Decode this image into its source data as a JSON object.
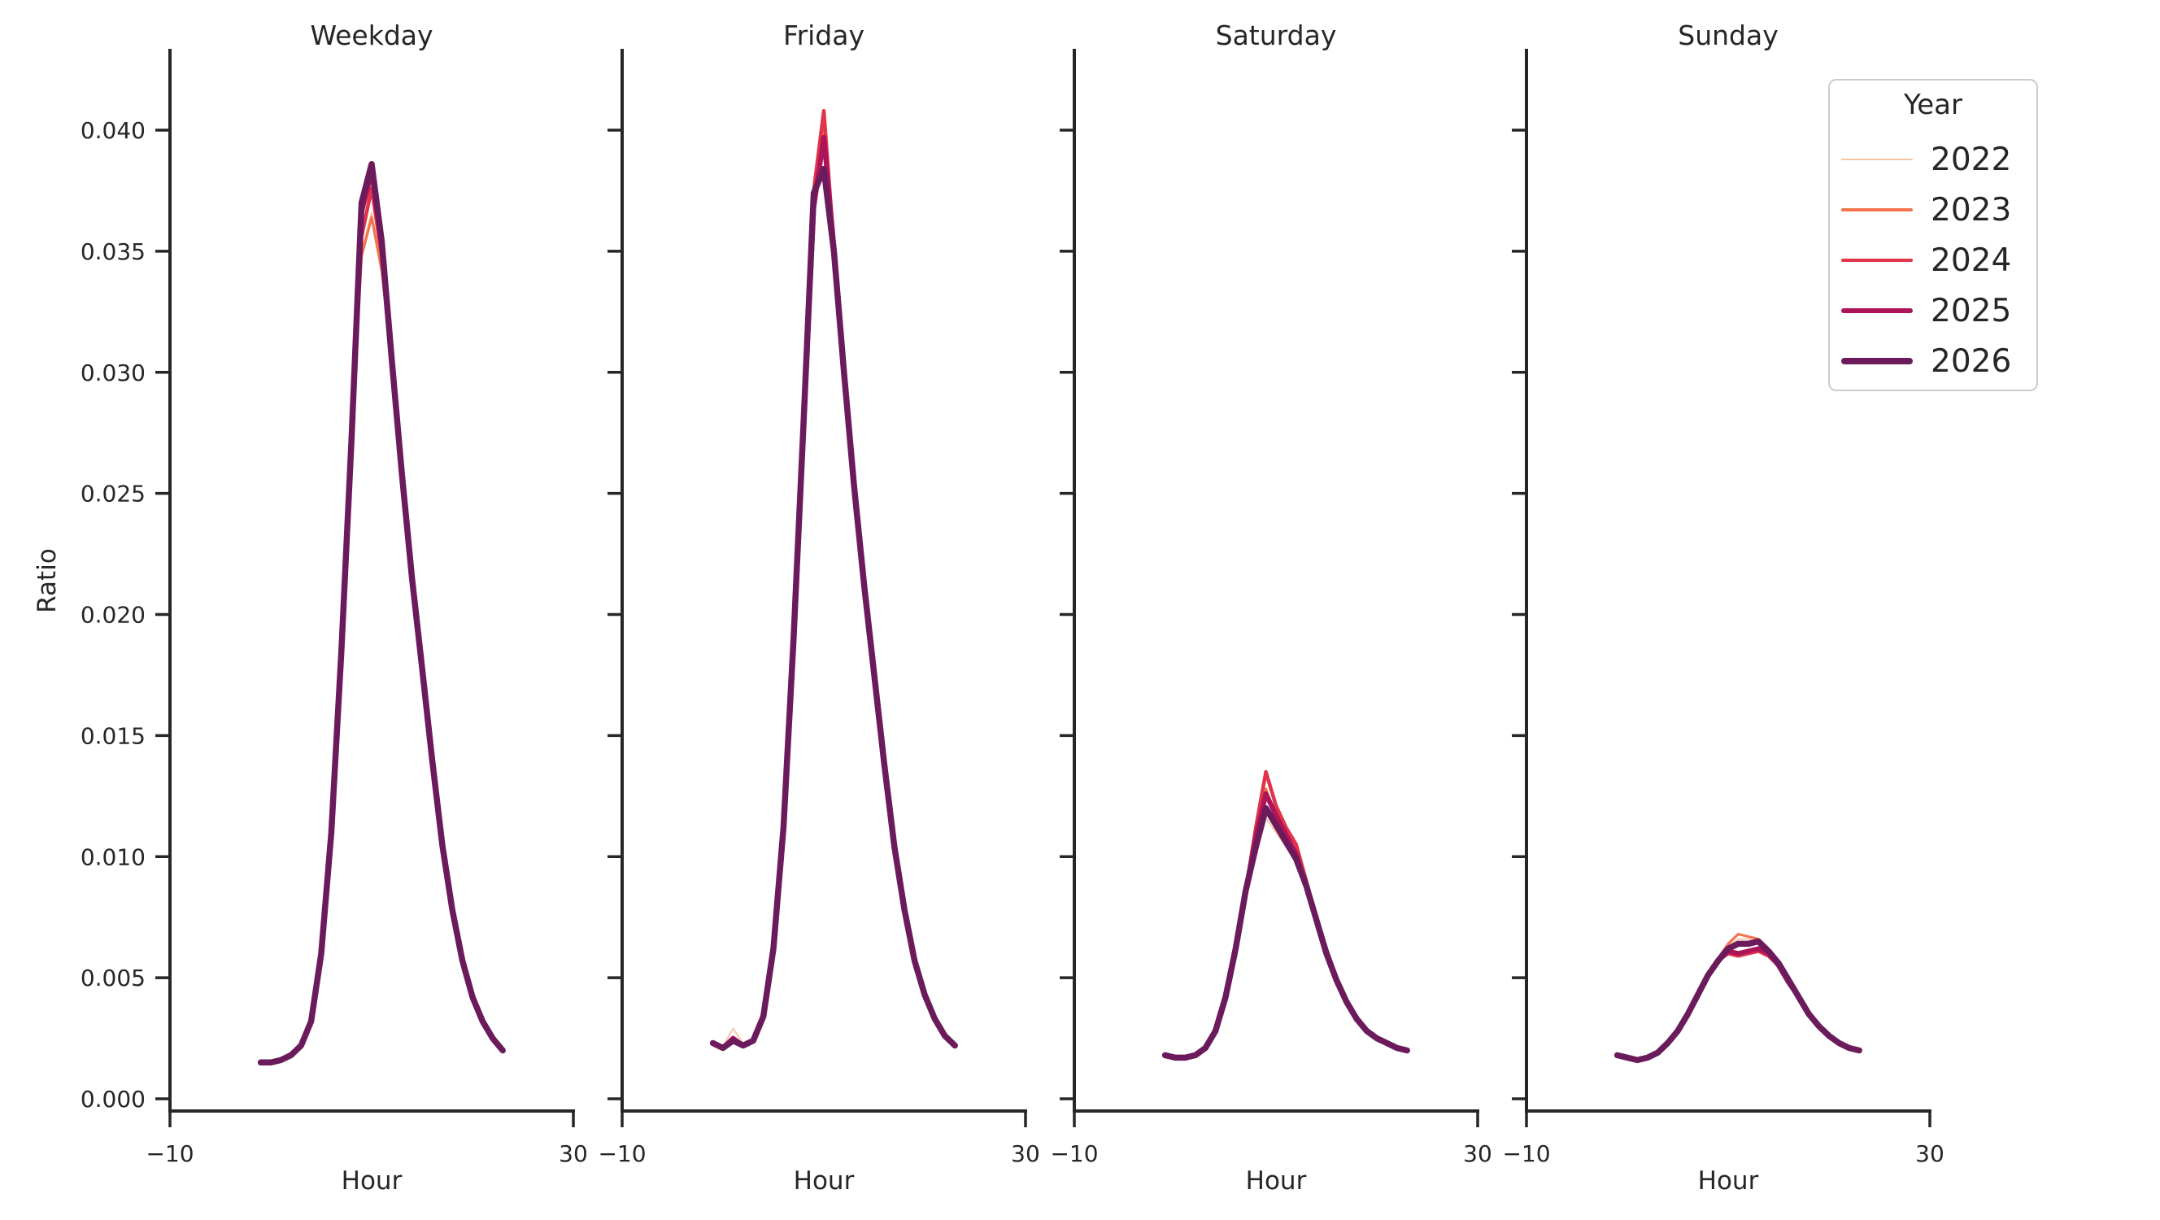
{
  "figure": {
    "background": "#ffffff",
    "text_color": "#262626"
  },
  "chart_data": {
    "type": "line",
    "facets": [
      {
        "title": "Weekday",
        "series": [
          {
            "year": "2022",
            "values": [
              0.0015,
              0.0015,
              0.0016,
              0.0018,
              0.0022,
              0.0032,
              0.006,
              0.011,
              0.0185,
              0.0272,
              0.035,
              0.0366,
              0.0344,
              0.0305,
              0.0258,
              0.0215,
              0.0178,
              0.014,
              0.0105,
              0.0078,
              0.0057,
              0.0042,
              0.0032,
              0.0025,
              0.002
            ]
          },
          {
            "year": "2023",
            "values": [
              0.0015,
              0.0015,
              0.0016,
              0.0018,
              0.0022,
              0.0032,
              0.006,
              0.011,
              0.0185,
              0.0272,
              0.0348,
              0.0364,
              0.0342,
              0.0305,
              0.0258,
              0.0215,
              0.0178,
              0.014,
              0.0105,
              0.0078,
              0.0057,
              0.0042,
              0.0032,
              0.0025,
              0.002
            ]
          },
          {
            "year": "2024",
            "values": [
              0.0015,
              0.0015,
              0.0016,
              0.0018,
              0.0022,
              0.0032,
              0.006,
              0.011,
              0.0185,
              0.0272,
              0.0356,
              0.0376,
              0.0348,
              0.0305,
              0.0258,
              0.0215,
              0.0178,
              0.014,
              0.0105,
              0.0078,
              0.0057,
              0.0042,
              0.0032,
              0.0025,
              0.002
            ]
          },
          {
            "year": "2025",
            "values": [
              0.0015,
              0.0015,
              0.0016,
              0.0018,
              0.0022,
              0.0032,
              0.006,
              0.011,
              0.0185,
              0.0272,
              0.0366,
              0.0383,
              0.0352,
              0.0305,
              0.0258,
              0.0215,
              0.0178,
              0.014,
              0.0105,
              0.0078,
              0.0057,
              0.0042,
              0.0032,
              0.0025,
              0.002
            ]
          },
          {
            "year": "2026",
            "values": [
              0.0015,
              0.0015,
              0.0016,
              0.0018,
              0.0022,
              0.0032,
              0.006,
              0.011,
              0.0185,
              0.0272,
              0.037,
              0.0386,
              0.0354,
              0.0305,
              0.0258,
              0.0215,
              0.0178,
              0.014,
              0.0105,
              0.0078,
              0.0057,
              0.0042,
              0.0032,
              0.0025,
              0.002
            ]
          }
        ]
      },
      {
        "title": "Friday",
        "series": [
          {
            "year": "2022",
            "values": [
              0.0024,
              0.0022,
              0.0029,
              0.0023,
              0.0025,
              0.0034,
              0.0062,
              0.0112,
              0.019,
              0.028,
              0.0368,
              0.0399,
              0.0352,
              0.03,
              0.0253,
              0.0212,
              0.0175,
              0.0138,
              0.0104,
              0.0078,
              0.0057,
              0.0043,
              0.0033,
              0.0026,
              0.0022
            ]
          },
          {
            "year": "2023",
            "values": [
              0.0023,
              0.0021,
              0.0025,
              0.0022,
              0.0024,
              0.0034,
              0.0062,
              0.0112,
              0.019,
              0.028,
              0.037,
              0.0402,
              0.0352,
              0.03,
              0.0253,
              0.0212,
              0.0175,
              0.0138,
              0.0104,
              0.0078,
              0.0057,
              0.0043,
              0.0033,
              0.0026,
              0.0022
            ]
          },
          {
            "year": "2024",
            "values": [
              0.0023,
              0.0021,
              0.0025,
              0.0022,
              0.0024,
              0.0034,
              0.0062,
              0.0112,
              0.019,
              0.028,
              0.0375,
              0.0408,
              0.0352,
              0.03,
              0.0253,
              0.0212,
              0.0175,
              0.0138,
              0.0104,
              0.0078,
              0.0057,
              0.0043,
              0.0033,
              0.0026,
              0.0022
            ]
          },
          {
            "year": "2025",
            "values": [
              0.0023,
              0.0021,
              0.0025,
              0.0022,
              0.0024,
              0.0034,
              0.0062,
              0.0112,
              0.019,
              0.028,
              0.0368,
              0.0397,
              0.0352,
              0.03,
              0.0253,
              0.0212,
              0.0175,
              0.0138,
              0.0104,
              0.0078,
              0.0057,
              0.0043,
              0.0033,
              0.0026,
              0.0022
            ]
          },
          {
            "year": "2026",
            "values": [
              0.0023,
              0.0021,
              0.0024,
              0.0022,
              0.0024,
              0.0034,
              0.0062,
              0.0112,
              0.019,
              0.028,
              0.0374,
              0.0384,
              0.035,
              0.03,
              0.0253,
              0.0212,
              0.0175,
              0.0138,
              0.0104,
              0.0078,
              0.0057,
              0.0043,
              0.0033,
              0.0026,
              0.0022
            ]
          }
        ]
      },
      {
        "title": "Saturday",
        "series": [
          {
            "year": "2022",
            "values": [
              0.0018,
              0.0017,
              0.0017,
              0.0018,
              0.0021,
              0.0028,
              0.0042,
              0.0062,
              0.0086,
              0.01,
              0.0116,
              0.011,
              0.0104,
              0.0098,
              0.0088,
              0.0074,
              0.0061,
              0.0049,
              0.004,
              0.0033,
              0.0028,
              0.0025,
              0.0023,
              0.0021,
              0.002
            ]
          },
          {
            "year": "2023",
            "values": [
              0.0018,
              0.0017,
              0.0017,
              0.0018,
              0.0021,
              0.0028,
              0.0042,
              0.0062,
              0.0086,
              0.0108,
              0.0128,
              0.0115,
              0.0108,
              0.0102,
              0.0088,
              0.0074,
              0.0061,
              0.0049,
              0.004,
              0.0033,
              0.0028,
              0.0025,
              0.0023,
              0.0021,
              0.002
            ]
          },
          {
            "year": "2024",
            "values": [
              0.0018,
              0.0017,
              0.0017,
              0.0018,
              0.0021,
              0.0028,
              0.0042,
              0.0062,
              0.0086,
              0.0112,
              0.0135,
              0.0121,
              0.0112,
              0.0105,
              0.009,
              0.0074,
              0.0061,
              0.0049,
              0.004,
              0.0033,
              0.0028,
              0.0025,
              0.0023,
              0.0021,
              0.002
            ]
          },
          {
            "year": "2025",
            "values": [
              0.0018,
              0.0017,
              0.0017,
              0.0018,
              0.0021,
              0.0028,
              0.0042,
              0.0062,
              0.0086,
              0.0108,
              0.0126,
              0.0117,
              0.0109,
              0.0101,
              0.0088,
              0.0074,
              0.0061,
              0.0049,
              0.004,
              0.0033,
              0.0028,
              0.0025,
              0.0023,
              0.0021,
              0.002
            ]
          },
          {
            "year": "2026",
            "values": [
              0.0018,
              0.0017,
              0.0017,
              0.0018,
              0.0021,
              0.0028,
              0.0042,
              0.0062,
              0.0086,
              0.0104,
              0.012,
              0.0113,
              0.0106,
              0.0099,
              0.0088,
              0.0074,
              0.006,
              0.0049,
              0.004,
              0.0033,
              0.0028,
              0.0025,
              0.0023,
              0.0021,
              0.002
            ]
          }
        ]
      },
      {
        "title": "Sunday",
        "series": [
          {
            "year": "2022",
            "values": [
              0.0018,
              0.0017,
              0.0016,
              0.0017,
              0.0019,
              0.0023,
              0.0028,
              0.0035,
              0.0043,
              0.0051,
              0.0057,
              0.0063,
              0.0066,
              0.0066,
              0.0065,
              0.0061,
              0.0056,
              0.0049,
              0.0042,
              0.0035,
              0.003,
              0.0026,
              0.0023,
              0.0021,
              0.002
            ]
          },
          {
            "year": "2023",
            "values": [
              0.0018,
              0.0017,
              0.0016,
              0.0017,
              0.0019,
              0.0023,
              0.0028,
              0.0035,
              0.0043,
              0.0051,
              0.0058,
              0.0064,
              0.0068,
              0.0067,
              0.0066,
              0.0062,
              0.0056,
              0.0049,
              0.0042,
              0.0035,
              0.003,
              0.0026,
              0.0023,
              0.0021,
              0.002
            ]
          },
          {
            "year": "2024",
            "values": [
              0.0018,
              0.0017,
              0.0016,
              0.0017,
              0.0019,
              0.0023,
              0.0028,
              0.0035,
              0.0043,
              0.0051,
              0.0057,
              0.006,
              0.0059,
              0.006,
              0.0061,
              0.0059,
              0.0055,
              0.0048,
              0.0042,
              0.0035,
              0.003,
              0.0026,
              0.0023,
              0.0021,
              0.002
            ]
          },
          {
            "year": "2025",
            "values": [
              0.0018,
              0.0017,
              0.0016,
              0.0017,
              0.0019,
              0.0023,
              0.0028,
              0.0035,
              0.0043,
              0.0051,
              0.0057,
              0.0061,
              0.006,
              0.0061,
              0.0062,
              0.006,
              0.0055,
              0.0048,
              0.0042,
              0.0035,
              0.003,
              0.0026,
              0.0023,
              0.0021,
              0.002
            ]
          },
          {
            "year": "2026",
            "values": [
              0.0018,
              0.0017,
              0.0016,
              0.0017,
              0.0019,
              0.0023,
              0.0028,
              0.0035,
              0.0043,
              0.0051,
              0.0057,
              0.0062,
              0.0064,
              0.0064,
              0.0065,
              0.0061,
              0.0056,
              0.0049,
              0.0042,
              0.0035,
              0.003,
              0.0026,
              0.0023,
              0.0021,
              0.002
            ]
          }
        ]
      }
    ],
    "x": [
      -1,
      0,
      1,
      2,
      3,
      4,
      5,
      6,
      7,
      8,
      9,
      10,
      11,
      12,
      13,
      14,
      15,
      16,
      17,
      18,
      19,
      20,
      21,
      22,
      23
    ],
    "axes": {
      "xlabel": "Hour",
      "ylabel": "Ratio",
      "xlim": [
        -10,
        30
      ],
      "ylim": [
        0,
        0.0433
      ],
      "x_ticks": [
        -10,
        30
      ],
      "x_tick_labels": [
        "−10",
        "30"
      ],
      "y_ticks": [
        0.0,
        0.005,
        0.01,
        0.015,
        0.02,
        0.025,
        0.03,
        0.035,
        0.04
      ],
      "y_tick_labels": [
        "0.000",
        "0.005",
        "0.010",
        "0.015",
        "0.020",
        "0.025",
        "0.030",
        "0.035",
        "0.040"
      ]
    },
    "legend": {
      "title": "Year",
      "position": "upper right",
      "entries": [
        {
          "label": "2022",
          "color": "#f9c5a0",
          "line_width": 1.8
        },
        {
          "label": "2023",
          "color": "#f4744e",
          "line_width": 3.2
        },
        {
          "label": "2024",
          "color": "#e1334a",
          "line_width": 4.5
        },
        {
          "label": "2025",
          "color": "#ad1459",
          "line_width": 6
        },
        {
          "label": "2026",
          "color": "#6b1b5c",
          "line_width": 7.5
        }
      ]
    }
  }
}
